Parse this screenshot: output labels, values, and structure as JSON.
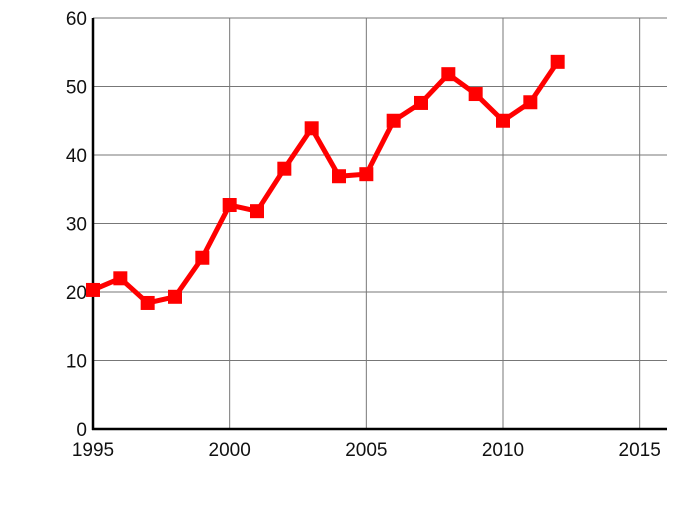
{
  "chart_data": {
    "type": "line",
    "title": "",
    "xlabel": "",
    "ylabel": "",
    "xlim": [
      1995,
      2016
    ],
    "ylim": [
      0,
      60
    ],
    "grid": true,
    "x_ticks": [
      "1995",
      "2000",
      "2005",
      "2010",
      "2015"
    ],
    "y_ticks": [
      "0",
      "10",
      "20",
      "30",
      "40",
      "50",
      "60"
    ],
    "line_color": "#ff0000",
    "marker": "square",
    "x": [
      1995,
      1996,
      1997,
      1998,
      1999,
      2000,
      2001,
      2002,
      2003,
      2004,
      2005,
      2006,
      2007,
      2008,
      2009,
      2010,
      2011,
      2012
    ],
    "values": [
      20.3,
      22.0,
      18.4,
      19.3,
      25.0,
      32.7,
      31.8,
      38.0,
      43.9,
      36.9,
      37.2,
      45.0,
      47.6,
      51.8,
      48.9,
      45.0,
      47.7,
      53.6
    ]
  }
}
